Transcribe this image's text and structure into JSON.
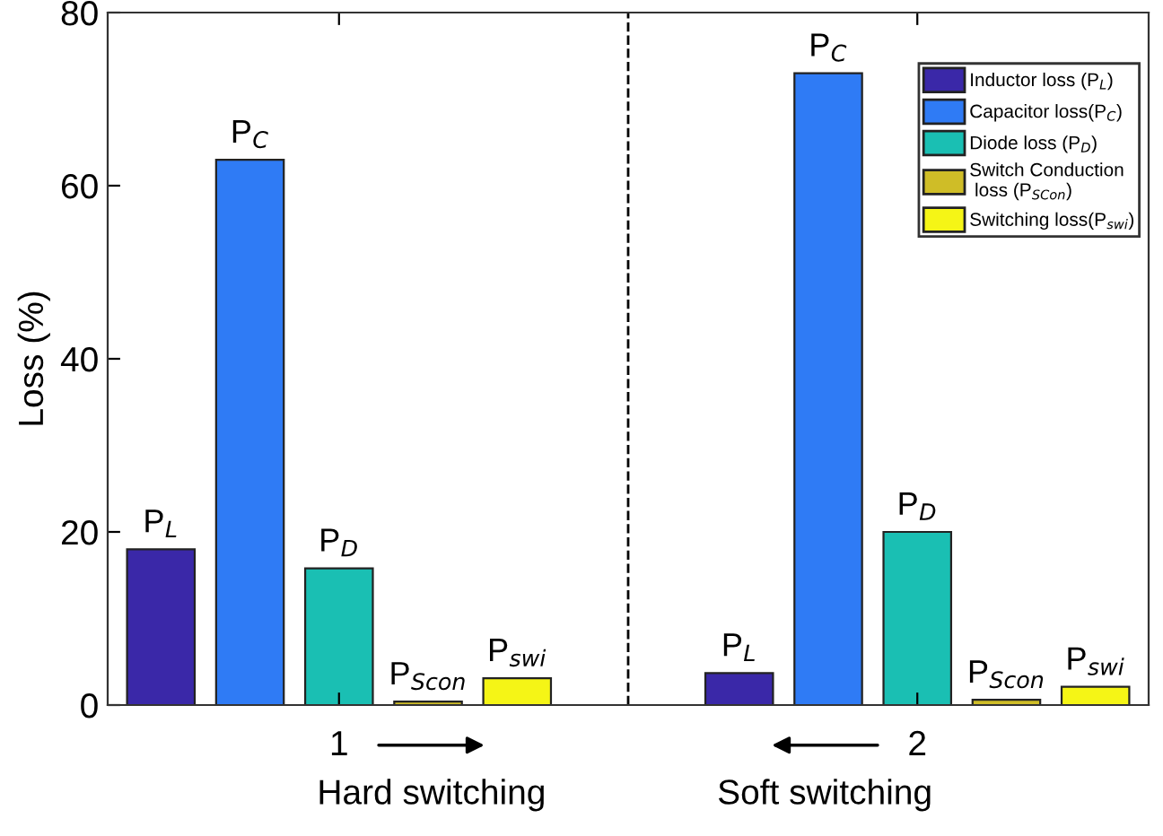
{
  "chart_data": {
    "type": "bar",
    "ylabel": "Loss (%)",
    "x": [
      1,
      2
    ],
    "xlim": [
      0.6,
      2.4
    ],
    "xticks": [
      1,
      2
    ],
    "ylim": [
      0,
      80
    ],
    "yticks": [
      0,
      20,
      40,
      60,
      80
    ],
    "series": [
      {
        "name": "Inductor loss (P$_{L}$)",
        "color": "#3a28a8",
        "values": [
          18,
          3.7
        ],
        "value_labels": [
          "P$_{L}$",
          "P$_{L}$"
        ]
      },
      {
        "name": "Capacitor loss(P$_{C}$)",
        "color": "#2f7bf5",
        "values": [
          63,
          73
        ],
        "value_labels": [
          "P$_{C}$",
          "P$_{C}$"
        ]
      },
      {
        "name": "Diode loss (P$_{D}$)",
        "color": "#1abfb3",
        "values": [
          15.8,
          20
        ],
        "value_labels": [
          "P$_{D}$",
          "P$_{D}$"
        ]
      },
      {
        "name": "Switch Conduction\n loss (P$_{SCon}$)",
        "color": "#cfbd27",
        "values": [
          0.4,
          0.6
        ],
        "value_labels": [
          "P$_{Scon}$",
          "P$_{Scon}$"
        ]
      },
      {
        "name": "Switching loss(P$_{swi}$)",
        "color": "#f5f516",
        "values": [
          3.1,
          2.1
        ],
        "value_labels": [
          "P$_{swi}$",
          "P$_{swi}$"
        ]
      }
    ],
    "ref_lines": [
      {
        "axis": "x",
        "value": 1.5,
        "color": "#000000",
        "line_style": "dashed"
      }
    ],
    "annotations": [
      "Hard switching",
      "Soft switching"
    ],
    "legend": "top right",
    "grid": false
  }
}
